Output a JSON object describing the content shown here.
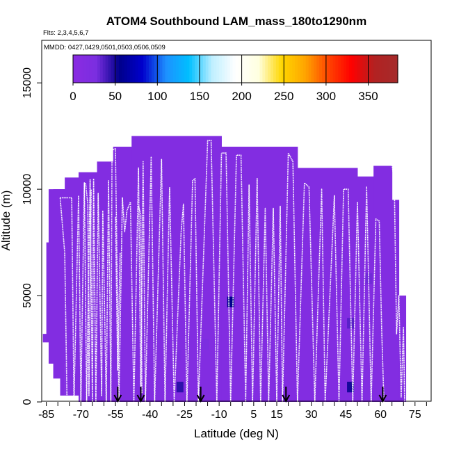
{
  "chart_data": {
    "type": "heatmap",
    "title": "ATOM4 Southbound LAM_mass_180to1290nm",
    "flights_note": "Flts: 2,3,4,5,6,7",
    "dates_note": "MMDD: 0427,0429,0501,0503,0506,0509",
    "xlabel": "Latitude (deg N)",
    "ylabel": "Altitude (m)",
    "xlim": [
      -87,
      82
    ],
    "ylim": [
      0,
      17000
    ],
    "x_ticks": [
      -85,
      -70,
      -55,
      -40,
      -25,
      -10,
      5,
      15,
      30,
      45,
      60,
      75
    ],
    "x_minor_step": 5,
    "y_ticks": [
      0,
      5000,
      10000,
      15000
    ],
    "colorbar": {
      "range": [
        0,
        385
      ],
      "ticks": [
        0,
        50,
        100,
        150,
        200,
        250,
        300,
        350
      ],
      "colors": [
        "#8a2be2",
        "#7b2ee0",
        "#00008b",
        "#0000cd",
        "#1e90ff",
        "#00bfff",
        "#bfefff",
        "#ffffff",
        "#ffffe0",
        "#ffd700",
        "#ffa500",
        "#ff4500",
        "#ff0000",
        "#b22222",
        "#a52a2a"
      ]
    },
    "background_value": 15,
    "background_profile": [
      {
        "x0": -86.5,
        "x1": -85,
        "top": 3200
      },
      {
        "x0": -85,
        "x1": -84,
        "top": 7500
      },
      {
        "x0": -84,
        "x1": -77,
        "top": 10000
      },
      {
        "x0": -77,
        "x1": -71,
        "top": 10550
      },
      {
        "x0": -71,
        "x1": -63,
        "top": 10800
      },
      {
        "x0": -63,
        "x1": -56,
        "top": 11300
      },
      {
        "x0": -56,
        "x1": -48,
        "top": 12000
      },
      {
        "x0": -48,
        "x1": -9,
        "top": 12500
      },
      {
        "x0": -9,
        "x1": 24,
        "top": 12000
      },
      {
        "x0": 24,
        "x1": 50,
        "top": 11000
      },
      {
        "x0": 50,
        "x1": 57,
        "top": 10600
      },
      {
        "x0": 57,
        "x1": 65,
        "top": 11100
      },
      {
        "x0": 65,
        "x1": 68,
        "top": 9500
      },
      {
        "x0": 68,
        "x1": 71,
        "top": 5000
      }
    ],
    "background_bottom": [
      {
        "x0": -86.5,
        "x1": -84,
        "bottom": 2800
      },
      {
        "x0": -84,
        "x1": -82,
        "bottom": 1800
      },
      {
        "x0": -82,
        "x1": -79,
        "bottom": 1100
      },
      {
        "x0": -79,
        "x1": -76,
        "bottom": 300
      },
      {
        "x0": -76,
        "x1": 71,
        "bottom": 0
      }
    ],
    "cells": [
      {
        "x": -27,
        "y": 700,
        "value": 45
      },
      {
        "x": -5,
        "y": 4700,
        "value": 55
      },
      {
        "x": 47,
        "y": 700,
        "value": 50
      },
      {
        "x": 47,
        "y": 3700,
        "value": 35
      },
      {
        "x": 55,
        "y": 5800,
        "value": 30
      },
      {
        "x": -16,
        "y": 2700,
        "value": 25
      },
      {
        "x": -28,
        "y": 2200,
        "value": 22
      },
      {
        "x": 43,
        "y": 6700,
        "value": 22
      }
    ],
    "cell_size": {
      "dx": 3,
      "dy": 500
    },
    "flight_track": {
      "series": [
        [
          [
            -79,
            9600
          ],
          [
            -74,
            9600
          ],
          [
            -73,
            0
          ],
          [
            -71,
            9700
          ],
          [
            -70,
            0
          ],
          [
            -68.5,
            10300
          ],
          [
            -67.5,
            0
          ],
          [
            -66,
            10450
          ],
          [
            -65,
            0
          ],
          [
            -64.5,
            10500
          ],
          [
            -63.5,
            0
          ],
          [
            -62.5,
            9800
          ],
          [
            -61,
            300
          ],
          [
            -60.5,
            9000
          ],
          [
            -59,
            0
          ],
          [
            -58,
            10400
          ],
          [
            -57,
            0
          ],
          [
            -56.5,
            11850
          ],
          [
            -55,
            11900
          ],
          [
            -53.5,
            0
          ],
          [
            -52,
            9600
          ],
          [
            -51,
            8000
          ],
          [
            -50,
            9000
          ],
          [
            -48.5,
            9400
          ],
          [
            -47,
            0
          ],
          [
            -45,
            11000
          ],
          [
            -44,
            0
          ],
          [
            -43,
            11300
          ],
          [
            -42,
            0
          ],
          [
            -39.5,
            11500
          ],
          [
            -38,
            0
          ],
          [
            -35,
            11400
          ],
          [
            -33.5,
            0
          ],
          [
            -31.5,
            10100
          ],
          [
            -29.5,
            0
          ],
          [
            -26.5,
            8000
          ],
          [
            -25.5,
            9300
          ],
          [
            -24,
            0
          ],
          [
            -21.5,
            10400
          ],
          [
            -20.5,
            10500
          ],
          [
            -19,
            0
          ],
          [
            -15,
            12300
          ],
          [
            -13.5,
            12300
          ],
          [
            -11,
            0
          ],
          [
            -9,
            11700
          ],
          [
            -7,
            11700
          ],
          [
            -5,
            0
          ],
          [
            -2.5,
            11600
          ],
          [
            -0.5,
            11600
          ],
          [
            1.5,
            0
          ],
          [
            3,
            10200
          ],
          [
            4.5,
            0
          ],
          [
            6.5,
            10500
          ],
          [
            8,
            0
          ],
          [
            10,
            9100
          ],
          [
            11.5,
            0
          ],
          [
            13.5,
            9100
          ],
          [
            15,
            0
          ],
          [
            16.5,
            9200
          ],
          [
            17.5,
            0
          ],
          [
            20,
            11700
          ],
          [
            22,
            11300
          ],
          [
            24,
            0
          ],
          [
            27,
            10300
          ],
          [
            29,
            10100
          ],
          [
            31.5,
            0
          ],
          [
            34.5,
            10000
          ],
          [
            36,
            0
          ],
          [
            40,
            9700
          ],
          [
            42,
            0
          ],
          [
            44,
            10000
          ],
          [
            46,
            10000
          ],
          [
            48,
            0
          ],
          [
            50,
            9400
          ],
          [
            52,
            0
          ],
          [
            54,
            10100
          ],
          [
            56,
            0
          ],
          [
            58,
            8600
          ],
          [
            59.5,
            8500
          ],
          [
            60.5,
            3500
          ],
          [
            61.5,
            0
          ]
        ],
        [
          [
            -79,
            9600
          ],
          [
            -77,
            7000
          ],
          [
            -76,
            0
          ]
        ],
        [
          [
            -68,
            10300
          ],
          [
            -67,
            9300
          ],
          [
            -66.5,
            300
          ],
          [
            -65.5,
            10000
          ]
        ],
        [
          [
            -55,
            8700
          ],
          [
            -54,
            1500
          ],
          [
            -53,
            7000
          ]
        ],
        [
          [
            -45,
            9200
          ],
          [
            -44,
            8800
          ],
          [
            -43.5,
            400
          ]
        ],
        [
          [
            63,
            11150
          ],
          [
            65,
            11150
          ],
          [
            66,
            10400
          ],
          [
            67,
            3200
          ],
          [
            68,
            5000
          ],
          [
            69,
            200
          ],
          [
            70,
            3500
          ],
          [
            70.5,
            0
          ]
        ]
      ]
    },
    "arrows": [
      -54,
      -44,
      -18,
      19,
      61
    ]
  }
}
